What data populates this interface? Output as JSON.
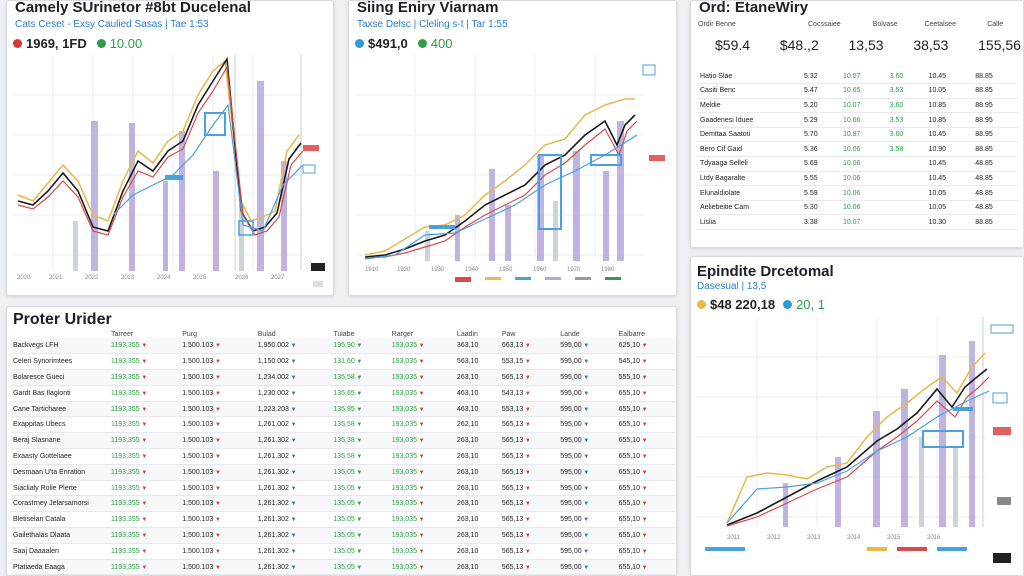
{
  "panel1": {
    "title": "Camely SUrinetor #8bt Ducelenal",
    "subtitle": "Cats Ceset - Exsy Caulied Sasas | Tae 1:53",
    "stat1": "1969, 1FD",
    "stat2": "10.00",
    "accent": "#d33"
  },
  "panel2": {
    "title": "Siing Eniry Viarnam",
    "subtitle": "Taxse Delsc | Cleling s-t | Tar 1:55",
    "stat1": "$491,0",
    "stat2": "400"
  },
  "panel3": {
    "title": "Ord: EtaneWiry",
    "headers": [
      "Ordir Benne",
      "Cocssaiee",
      "Bolvase",
      "Ceetalsee",
      "Calle"
    ],
    "values": [
      "$59.4",
      "$48.,2",
      "13,53",
      "38,53",
      "155,56"
    ],
    "rows": [
      {
        "name": "Hatio Slae",
        "c1": "5.32",
        "c2": "10.07",
        "c3": "3.60",
        "c4": "10.45",
        "c5": "88.85"
      },
      {
        "name": "Casiti Benc",
        "c1": "5.47",
        "c2": "10.65",
        "c3": "3.53",
        "c4": "10.05",
        "c5": "88.85"
      },
      {
        "name": "Meldie",
        "c1": "5.20",
        "c2": "10.07",
        "c3": "3.60",
        "c4": "10.85",
        "c5": "88.95"
      },
      {
        "name": "Gaadenesi Iduee",
        "c1": "5.29",
        "c2": "10.66",
        "c3": "3.53",
        "c4": "10.85",
        "c5": "88.95"
      },
      {
        "name": "Demttaa Saatoti",
        "c1": "5.70",
        "c2": "10.87",
        "c3": "3.60",
        "c4": "10.45",
        "c5": "88.95"
      },
      {
        "name": "Bero Cif Gaid",
        "c1": "5.36",
        "c2": "10.06",
        "c3": "3.58",
        "c4": "10.90",
        "c5": "88.85"
      },
      {
        "name": "Tdyaaga Selleli",
        "c1": "5.69",
        "c2": "10.06",
        "c3": "",
        "c4": "10.45",
        "c5": "48.85"
      },
      {
        "name": "Ltdy Bagaralte",
        "c1": "5.55",
        "c2": "10.06",
        "c3": "",
        "c4": "10.45",
        "c5": "48.85"
      },
      {
        "name": "Elunaldiolate",
        "c1": "5.59",
        "c2": "10.06",
        "c3": "",
        "c4": "10.05",
        "c5": "48.85"
      },
      {
        "name": "Aeliebeitie Cam",
        "c1": "5.30",
        "c2": "10.06",
        "c3": "",
        "c4": "10.05",
        "c5": "48.85"
      },
      {
        "name": "Lislia",
        "c1": "3.38",
        "c2": "10.07",
        "c3": "",
        "c4": "10.30",
        "c5": "88.85"
      }
    ]
  },
  "panel4": {
    "title": "Proter Urider",
    "headers": [
      "Tarreer",
      "Purg",
      "Bulad",
      "Tulabe",
      "Rarger",
      "Laadin",
      "Paw",
      "Lande",
      "Ealbarre"
    ],
    "rows": [
      {
        "name": "Backvegs LFH",
        "v": [
          "1193,355",
          "1.500.103",
          "1,950.002",
          "195,90",
          "193,035",
          "363,10",
          "663,13",
          "595,00",
          "625,10"
        ]
      },
      {
        "name": "Celeri Synorimtees",
        "v": [
          "1193,355",
          "1.500.103",
          "1,150.002",
          "131,60",
          "193,035",
          "563,10",
          "553,15",
          "595,00",
          "545,10"
        ]
      },
      {
        "name": "Bolaresce Gueci",
        "v": [
          "1193,355",
          "1.500.103",
          "1,234.002",
          "135,58",
          "193,035",
          "263,10",
          "565,13",
          "595,00",
          "555,10"
        ]
      },
      {
        "name": "Gardt Bas Ilaglonti",
        "v": [
          "1193,355",
          "1.500.103",
          "1,230.002",
          "135,65",
          "193,035",
          "463,10",
          "543,13",
          "595,00",
          "655,10"
        ]
      },
      {
        "name": "Cane Tarticharee",
        "v": [
          "1193,355",
          "1.500.103",
          "1,223.203",
          "135,95",
          "193,035",
          "463,10",
          "553,13",
          "595,00",
          "655,10"
        ]
      },
      {
        "name": "Exappitas Ubecs",
        "v": [
          "1193,355",
          "1.500.103",
          "1,261.002",
          "135,58",
          "193,035",
          "262,10",
          "565,13",
          "595,00",
          "655,10"
        ]
      },
      {
        "name": "Beraj Slasnane",
        "v": [
          "1193,355",
          "1.500.103",
          "1,261.302",
          "135,38",
          "193,035",
          "263,10",
          "565,13",
          "595,00",
          "655,10"
        ]
      },
      {
        "name": "Exaasty Gotteliaee",
        "v": [
          "1193,355",
          "1.500.103",
          "1,261.302",
          "135,58",
          "193,035",
          "263,10",
          "565,13",
          "595,00",
          "655,10"
        ]
      },
      {
        "name": "Desmaan U'ta Enration",
        "v": [
          "1193,355",
          "1.500.103",
          "1,261.302",
          "135,05",
          "193,035",
          "263,10",
          "565,13",
          "595,00",
          "655,10"
        ]
      },
      {
        "name": "Siaclialy Rolie Plerte",
        "v": [
          "1193,355",
          "1.500.103",
          "1,261.302",
          "135,05",
          "193,035",
          "263,10",
          "565,13",
          "595,00",
          "655,10"
        ]
      },
      {
        "name": "Corastrney Jelarsamorsi",
        "v": [
          "1193,355",
          "1.500.103",
          "1,261.302",
          "135,05",
          "193,035",
          "263,10",
          "565,13",
          "595,00",
          "655,10"
        ]
      },
      {
        "name": "Bletiselan Catala",
        "v": [
          "1193,355",
          "1.500.103",
          "1,261.302",
          "135,05",
          "193,035",
          "263,10",
          "565,13",
          "595,00",
          "655,10"
        ]
      },
      {
        "name": "Gailethalas Dlaata",
        "v": [
          "1193,355",
          "1.500.103",
          "1,261.302",
          "135,05",
          "193,035",
          "263,10",
          "565,13",
          "595,00",
          "655,10"
        ]
      },
      {
        "name": "Saaj Daaaalen",
        "v": [
          "1193,355",
          "1.500.103",
          "1,261.302",
          "135,05",
          "193,035",
          "263,10",
          "565,13",
          "595,00",
          "655,10"
        ]
      },
      {
        "name": "Ptatiaeda Eaaga",
        "v": [
          "1193,355",
          "1.500.103",
          "1,261.302",
          "135,05",
          "193,035",
          "263,10",
          "565,13",
          "595,00",
          "655,10"
        ]
      }
    ]
  },
  "panel5": {
    "title": "Epindite Drcetomal",
    "subtitle": "Dasesual | 13,5",
    "stat1": "$48 220,18",
    "stat2": "20, 1"
  },
  "colors": {
    "gold": "#e8b84a",
    "black": "#1a1a1a",
    "red": "#d94a4a",
    "blue": "#4aa0e0",
    "purple": "#b4a8dc",
    "green": "#2e9d47"
  },
  "icons": [
    "triangle-down-icon",
    "triangle-up-icon",
    "status-dot-icon"
  ]
}
